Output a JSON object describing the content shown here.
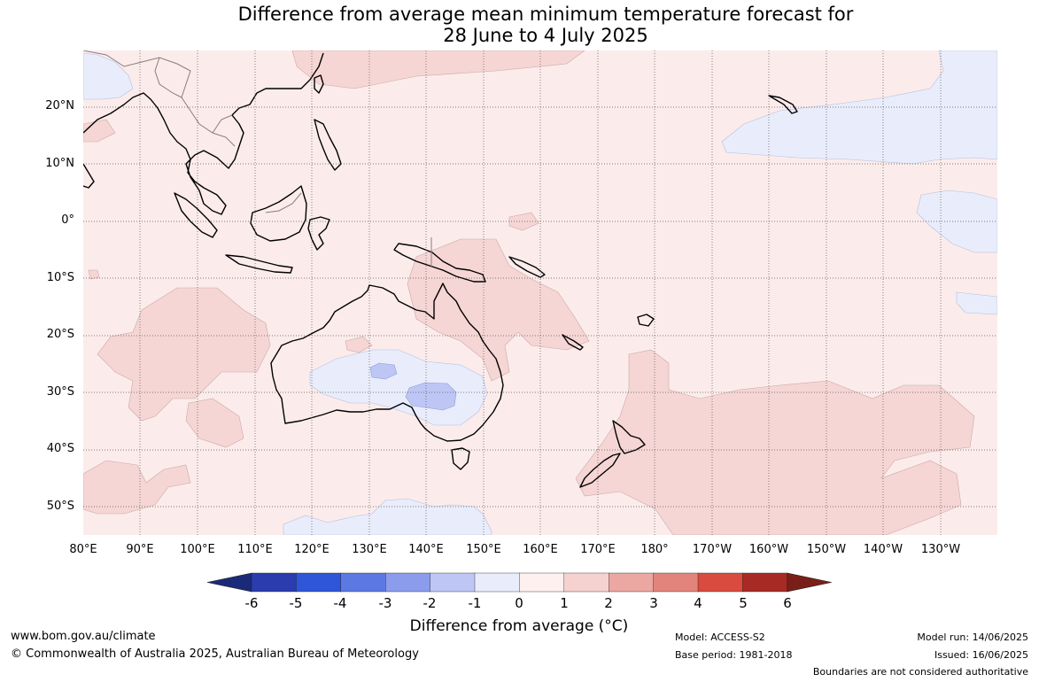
{
  "title_line1": "Difference from average mean minimum temperature forecast for",
  "title_line2": "28 June to 4 July 2025",
  "lat_labels": [
    "20°N",
    "10°N",
    "0°",
    "10°S",
    "20°S",
    "30°S",
    "40°S",
    "50°S"
  ],
  "lon_labels": [
    "80°E",
    "90°E",
    "100°E",
    "110°E",
    "120°E",
    "130°E",
    "140°E",
    "150°E",
    "160°E",
    "170°E",
    "180°",
    "170°W",
    "160°W",
    "150°W",
    "140°W",
    "130°W"
  ],
  "colorbar": {
    "labels": [
      "-6",
      "-5",
      "-4",
      "-3",
      "-2",
      "-1",
      "0",
      "1",
      "2",
      "3",
      "4",
      "5",
      "6"
    ],
    "colors": [
      "#1b2a78",
      "#2a3cae",
      "#2f55d8",
      "#5c78e2",
      "#8a9ceb",
      "#bdc6f4",
      "#e9edfb",
      "#fdf0ee",
      "#f5d2d0",
      "#eba7a1",
      "#e2847b",
      "#d84b3e",
      "#a82a24",
      "#7a1f17"
    ],
    "title": "Difference from average (°C)"
  },
  "footer": {
    "website": "www.bom.gov.au/climate",
    "copyright": "© Commonwealth of Australia 2025, Australian Bureau of Meteorology",
    "model": "Model: ACCESS-S2",
    "base_period": "Base period: 1981-2018",
    "model_run": "Model run: 14/06/2025",
    "issued": "Issued: 16/06/2025",
    "disclaimer": "Boundaries are not considered authoritative"
  },
  "map_colors": {
    "ocean_base": "#fbeceb",
    "warm_1_2": "#f5d6d4",
    "cool_0_1": "#e9edfb",
    "cool_1_2": "#bdc6f4",
    "coast": "#000000",
    "grid": "#555555"
  }
}
